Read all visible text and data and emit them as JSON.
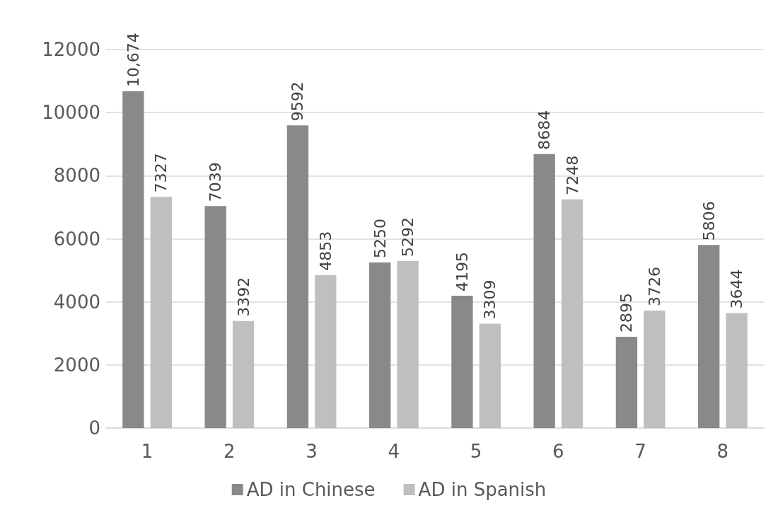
{
  "chart_data": {
    "type": "bar",
    "categories": [
      "1",
      "2",
      "3",
      "4",
      "5",
      "6",
      "7",
      "8"
    ],
    "series": [
      {
        "name": "AD in Chinese",
        "color": "#898989",
        "values": [
          10674,
          7039,
          9592,
          5250,
          4195,
          8684,
          2895,
          5806
        ],
        "value_labels": [
          "10,674",
          "7039",
          "9592",
          "5250",
          "4195",
          "8684",
          "2895",
          "5806"
        ]
      },
      {
        "name": "AD in Spanish",
        "color": "#bfbfbf",
        "values": [
          7327,
          3392,
          4853,
          5292,
          3309,
          7248,
          3726,
          3644
        ],
        "value_labels": [
          "7327",
          "3392",
          "4853",
          "5292",
          "3309",
          "7248",
          "3726",
          "3644"
        ]
      }
    ],
    "ylim": [
      0,
      12000
    ],
    "yticks": [
      0,
      2000,
      4000,
      6000,
      8000,
      10000,
      12000
    ],
    "grid": "y",
    "legend": "bottom"
  }
}
